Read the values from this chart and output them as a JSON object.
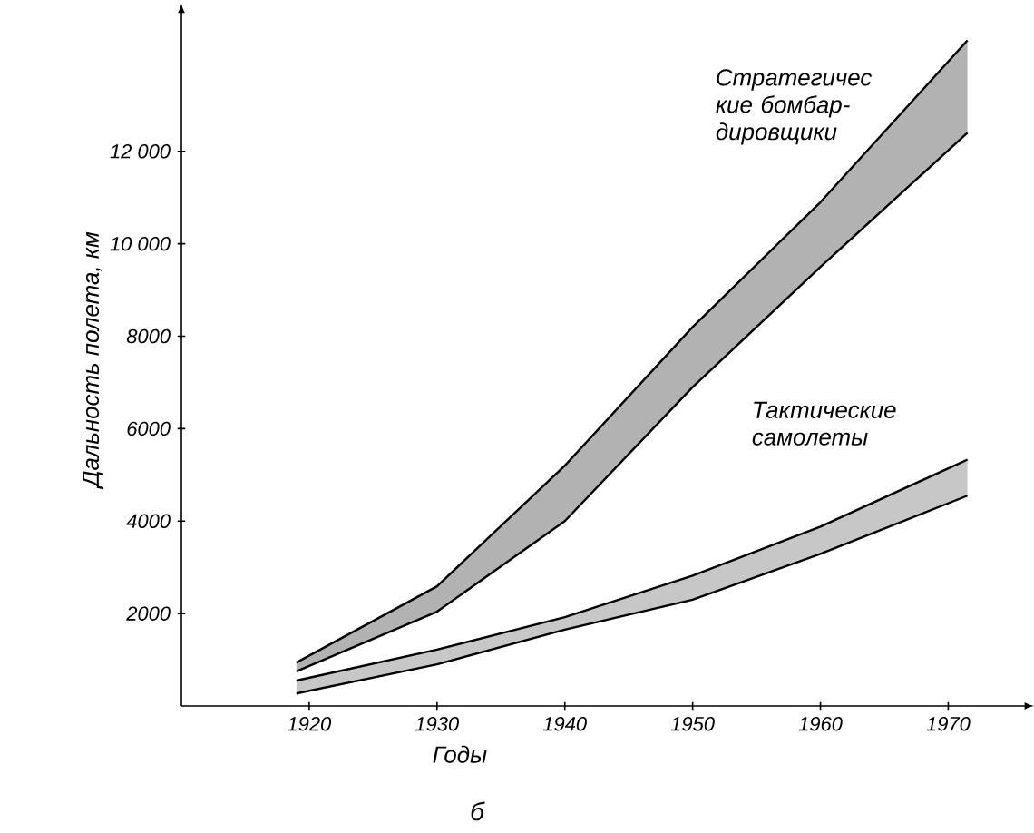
{
  "chart_data": {
    "type": "line",
    "xlabel": "Годы",
    "ylabel": "Дальность полета, км",
    "xlim": [
      1910,
      1976
    ],
    "ylim": [
      0,
      15000
    ],
    "xticks": [
      1920,
      1930,
      1940,
      1950,
      1960,
      1970
    ],
    "yticks": [
      2000,
      4000,
      6000,
      8000,
      {
        "value": 10000,
        "label": "10 000"
      },
      {
        "value": 12000,
        "label": "12 000"
      }
    ],
    "grid": false,
    "marker": "none",
    "line_style": "solid",
    "series": [
      {
        "name": "Стратегичес кие бомбар- дировщики",
        "color": "#000000",
        "x": [
          1919,
          1930,
          1940,
          1950,
          1960,
          1971.5
        ],
        "values": [
          940,
          2590,
          5200,
          8200,
          10900,
          14400
        ],
        "lower": [
          750,
          2040,
          4000,
          6900,
          9500,
          12400
        ],
        "upper": [
          940,
          2590,
          5200,
          8200,
          10900,
          14400
        ]
      },
      {
        "color": "#000000",
        "x": [
          1919,
          1930,
          1940,
          1950,
          1960,
          1971.5
        ],
        "values": [
          750,
          2040,
          4000,
          6900,
          9500,
          12400
        ]
      },
      {
        "name": "Тактические самолеты",
        "color": "#000000",
        "x": [
          1919,
          1930,
          1940,
          1950,
          1960,
          1971.5
        ],
        "values": [
          550,
          1220,
          1920,
          2820,
          3880,
          5330
        ],
        "lower": [
          270,
          900,
          1650,
          2300,
          3290,
          4550
        ],
        "upper": [
          550,
          1220,
          1920,
          2820,
          3880,
          5330
        ]
      },
      {
        "color": "#000000",
        "x": [
          1919,
          1930,
          1940,
          1950,
          1960,
          1971.5
        ],
        "values": [
          270,
          900,
          1650,
          2300,
          3290,
          4550
        ]
      }
    ],
    "annotations": [
      "б"
    ]
  }
}
